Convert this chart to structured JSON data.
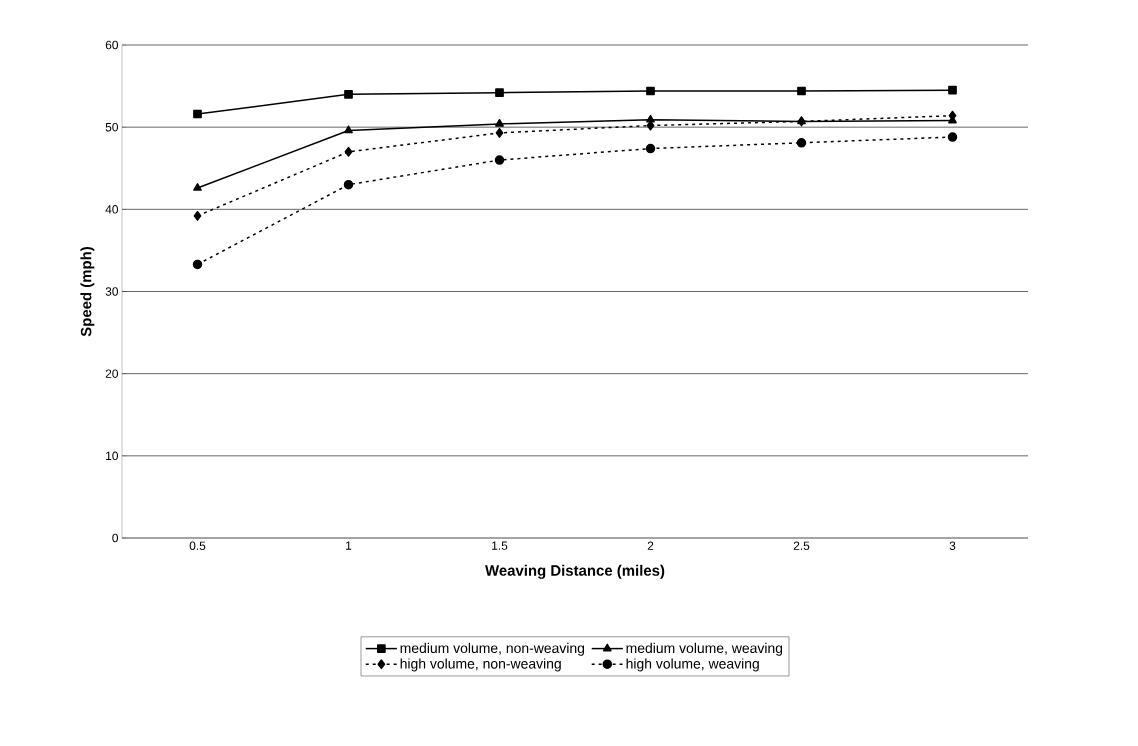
{
  "chart_data": {
    "type": "line",
    "xlabel": "Weaving Distance (miles)",
    "ylabel": "Speed (mph)",
    "categories": [
      "0.5",
      "1",
      "1.5",
      "2",
      "2.5",
      "3"
    ],
    "series": [
      {
        "name": "medium volume, non-weaving",
        "color": "#000000",
        "marker": "square",
        "line_style": "solid",
        "values": [
          51.6,
          54.0,
          54.2,
          54.4,
          54.4,
          54.5
        ]
      },
      {
        "name": "medium volume, weaving",
        "color": "#000000",
        "marker": "triangle",
        "line_style": "solid",
        "values": [
          42.6,
          49.6,
          50.4,
          50.9,
          50.7,
          50.8
        ]
      },
      {
        "name": "high volume, non-weaving",
        "color": "#000000",
        "marker": "diamond",
        "line_style": "dashed",
        "values": [
          39.2,
          47.0,
          49.3,
          50.2,
          50.7,
          51.4
        ]
      },
      {
        "name": "high volume, weaving",
        "color": "#000000",
        "marker": "circle",
        "line_style": "dashed",
        "values": [
          33.3,
          43.0,
          46.0,
          47.4,
          48.1,
          48.8
        ]
      }
    ],
    "ylim": [
      0,
      60
    ],
    "yticks": [
      0,
      10,
      20,
      30,
      40,
      50,
      60
    ],
    "grid": "y",
    "legend": "bottom"
  }
}
